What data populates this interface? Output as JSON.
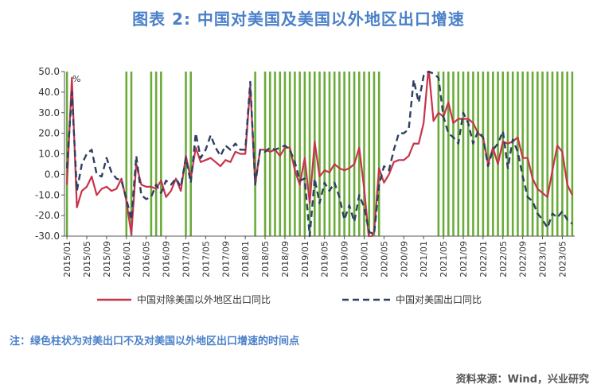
{
  "title": "图表 2:    中国对美国及美国以外地区出口增速",
  "note": "注：绿色柱状为对美出口不及对美国以外地区出口增速的时间点",
  "source": "资料来源：Wind，兴业研究",
  "colors": {
    "series1": "#c8334a",
    "series2": "#2f3f63",
    "bars": "#6aac3a",
    "accent": "#4a80c8"
  },
  "chart_data": {
    "type": "line",
    "unit_label": "%",
    "ylim": [
      -30,
      50
    ],
    "yticks": [
      -30,
      -20,
      -10,
      0,
      10,
      20,
      30,
      40,
      50
    ],
    "ytick_labels": [
      "-30.0",
      "-20.0",
      "-10.0",
      "0.0",
      "10.0",
      "20.0",
      "30.0",
      "40.0",
      "50.0"
    ],
    "x_start": "2015-01",
    "x_end": "2023-07",
    "xtick_labels": [
      "2015/01",
      "2015/05",
      "2015/09",
      "2016/01",
      "2016/05",
      "2016/09",
      "2017/01",
      "2017/05",
      "2017/09",
      "2018/01",
      "2018/05",
      "2018/09",
      "2019/01",
      "2019/05",
      "2019/09",
      "2020/01",
      "2020/05",
      "2020/09",
      "2021/01",
      "2021/05",
      "2021/09",
      "2022/01",
      "2022/05",
      "2022/09",
      "2023/01",
      "2023/05"
    ],
    "series": [
      {
        "name": "中国对除美国以外地区出口同比",
        "style": "solid",
        "dates": [
          "2015-01",
          "2015-02",
          "2015-03",
          "2015-04",
          "2015-05",
          "2015-06",
          "2015-07",
          "2015-08",
          "2015-09",
          "2015-10",
          "2015-11",
          "2015-12",
          "2016-01",
          "2016-02",
          "2016-03",
          "2016-04",
          "2016-05",
          "2016-06",
          "2016-07",
          "2016-08",
          "2016-09",
          "2016-10",
          "2016-11",
          "2016-12",
          "2017-01",
          "2017-02",
          "2017-03",
          "2017-04",
          "2017-05",
          "2017-06",
          "2017-07",
          "2017-08",
          "2017-09",
          "2017-10",
          "2017-11",
          "2017-12",
          "2018-01",
          "2018-02",
          "2018-03",
          "2018-04",
          "2018-05",
          "2018-06",
          "2018-07",
          "2018-08",
          "2018-09",
          "2018-10",
          "2018-11",
          "2018-12",
          "2019-01",
          "2019-02",
          "2019-03",
          "2019-04",
          "2019-05",
          "2019-06",
          "2019-07",
          "2019-08",
          "2019-09",
          "2019-10",
          "2019-11",
          "2019-12",
          "2020-01",
          "2020-02",
          "2020-03",
          "2020-04",
          "2020-05",
          "2020-06",
          "2020-07",
          "2020-08",
          "2020-09",
          "2020-10",
          "2020-11",
          "2020-12",
          "2021-01",
          "2021-02",
          "2021-03",
          "2021-04",
          "2021-05",
          "2021-06",
          "2021-07",
          "2021-08",
          "2021-09",
          "2021-10",
          "2021-11",
          "2021-12",
          "2022-01",
          "2022-02",
          "2022-03",
          "2022-04",
          "2022-05",
          "2022-06",
          "2022-07",
          "2022-08",
          "2022-09",
          "2022-10",
          "2022-11",
          "2022-12",
          "2023-01",
          "2023-02",
          "2023-03",
          "2023-04",
          "2023-05",
          "2023-06",
          "2023-07"
        ],
        "values": [
          -5,
          47,
          -16,
          -8,
          -6,
          -1,
          -10,
          -7,
          -6,
          -8,
          -7,
          -2,
          -13,
          -29,
          5,
          -5,
          -6,
          -6,
          -7,
          -3,
          -11,
          -8,
          -2,
          -8,
          9,
          -2,
          13,
          6,
          7,
          8,
          6,
          4,
          7,
          6,
          11,
          10,
          10,
          43,
          -5,
          12,
          12,
          11,
          12,
          9,
          13,
          13,
          2,
          -5,
          8,
          -14,
          16,
          -1,
          2,
          1,
          5,
          3,
          2,
          3,
          5,
          13,
          -7,
          -32,
          -28,
          3,
          -4,
          0,
          6,
          7,
          7,
          9,
          15,
          15,
          25,
          52,
          26,
          30,
          28,
          35,
          25,
          27,
          27,
          27,
          25,
          20,
          18,
          5,
          13,
          5,
          16,
          15,
          16,
          18,
          8,
          8,
          -2,
          -7,
          -9,
          -11,
          2,
          14,
          11,
          -5,
          -10
        ]
      },
      {
        "name": "中国对美国出口同比",
        "style": "dashed",
        "dates": [
          "2015-01",
          "2015-02",
          "2015-03",
          "2015-04",
          "2015-05",
          "2015-06",
          "2015-07",
          "2015-08",
          "2015-09",
          "2015-10",
          "2015-11",
          "2015-12",
          "2016-01",
          "2016-02",
          "2016-03",
          "2016-04",
          "2016-05",
          "2016-06",
          "2016-07",
          "2016-08",
          "2016-09",
          "2016-10",
          "2016-11",
          "2016-12",
          "2017-01",
          "2017-02",
          "2017-03",
          "2017-04",
          "2017-05",
          "2017-06",
          "2017-07",
          "2017-08",
          "2017-09",
          "2017-10",
          "2017-11",
          "2017-12",
          "2018-01",
          "2018-02",
          "2018-03",
          "2018-04",
          "2018-05",
          "2018-06",
          "2018-07",
          "2018-08",
          "2018-09",
          "2018-10",
          "2018-11",
          "2018-12",
          "2019-01",
          "2019-02",
          "2019-03",
          "2019-04",
          "2019-05",
          "2019-06",
          "2019-07",
          "2019-08",
          "2019-09",
          "2019-10",
          "2019-11",
          "2019-12",
          "2020-01",
          "2020-02",
          "2020-03",
          "2020-04",
          "2020-05",
          "2020-06",
          "2020-07",
          "2020-08",
          "2020-09",
          "2020-10",
          "2020-11",
          "2020-12",
          "2021-01",
          "2021-02",
          "2021-03",
          "2021-04",
          "2021-05",
          "2021-06",
          "2021-07",
          "2021-08",
          "2021-09",
          "2021-10",
          "2021-11",
          "2021-12",
          "2022-01",
          "2022-02",
          "2022-03",
          "2022-04",
          "2022-05",
          "2022-06",
          "2022-07",
          "2022-08",
          "2022-09",
          "2022-10",
          "2022-11",
          "2022-12",
          "2023-01",
          "2023-02",
          "2023-03",
          "2023-04",
          "2023-05",
          "2023-06",
          "2023-07"
        ],
        "values": [
          3,
          40,
          -8,
          5,
          10,
          12,
          0,
          -1,
          8,
          1,
          -2,
          -3,
          -12,
          -22,
          9,
          -10,
          -12,
          -11,
          -5,
          -9,
          -3,
          -5,
          -2,
          -6,
          8,
          -4,
          20,
          8,
          12,
          19,
          13,
          9,
          14,
          12,
          15,
          12,
          12,
          45,
          -5,
          12,
          11,
          13,
          12,
          13,
          14,
          12,
          6,
          -3,
          -2,
          -30,
          -2,
          -14,
          -4,
          -8,
          -4,
          -11,
          -22,
          -15,
          -23,
          -10,
          -16,
          -28,
          -29,
          -5,
          4,
          2,
          12,
          20,
          20,
          22,
          46,
          35,
          48,
          50,
          49,
          47,
          28,
          20,
          18,
          15,
          30,
          25,
          15,
          21,
          18,
          4,
          12,
          15,
          21,
          3,
          17,
          11,
          -1,
          -11,
          -13,
          -19,
          -22,
          -26,
          -19,
          -21,
          -18,
          -22,
          -24
        ]
      }
    ],
    "green_bar_months": [
      "2015-01",
      "2016-01",
      "2016-02",
      "2016-06",
      "2016-07",
      "2016-08",
      "2017-01",
      "2017-02",
      "2018-03",
      "2018-05",
      "2018-06",
      "2018-07",
      "2018-08",
      "2018-09",
      "2018-10",
      "2018-11",
      "2018-12",
      "2019-01",
      "2019-02",
      "2019-03",
      "2019-04",
      "2019-05",
      "2019-06",
      "2019-07",
      "2019-08",
      "2019-09",
      "2019-10",
      "2019-11",
      "2019-12",
      "2020-01",
      "2020-02",
      "2020-03",
      "2020-04",
      "2021-04",
      "2021-05",
      "2021-06",
      "2021-07",
      "2021-08",
      "2021-09",
      "2021-10",
      "2021-11",
      "2021-12",
      "2022-01",
      "2022-02",
      "2022-03",
      "2022-04",
      "2022-05",
      "2022-06",
      "2022-07",
      "2022-08",
      "2022-09",
      "2022-10",
      "2022-11",
      "2022-12",
      "2023-01",
      "2023-02",
      "2023-03",
      "2023-04",
      "2023-05",
      "2023-06",
      "2023-07"
    ]
  }
}
